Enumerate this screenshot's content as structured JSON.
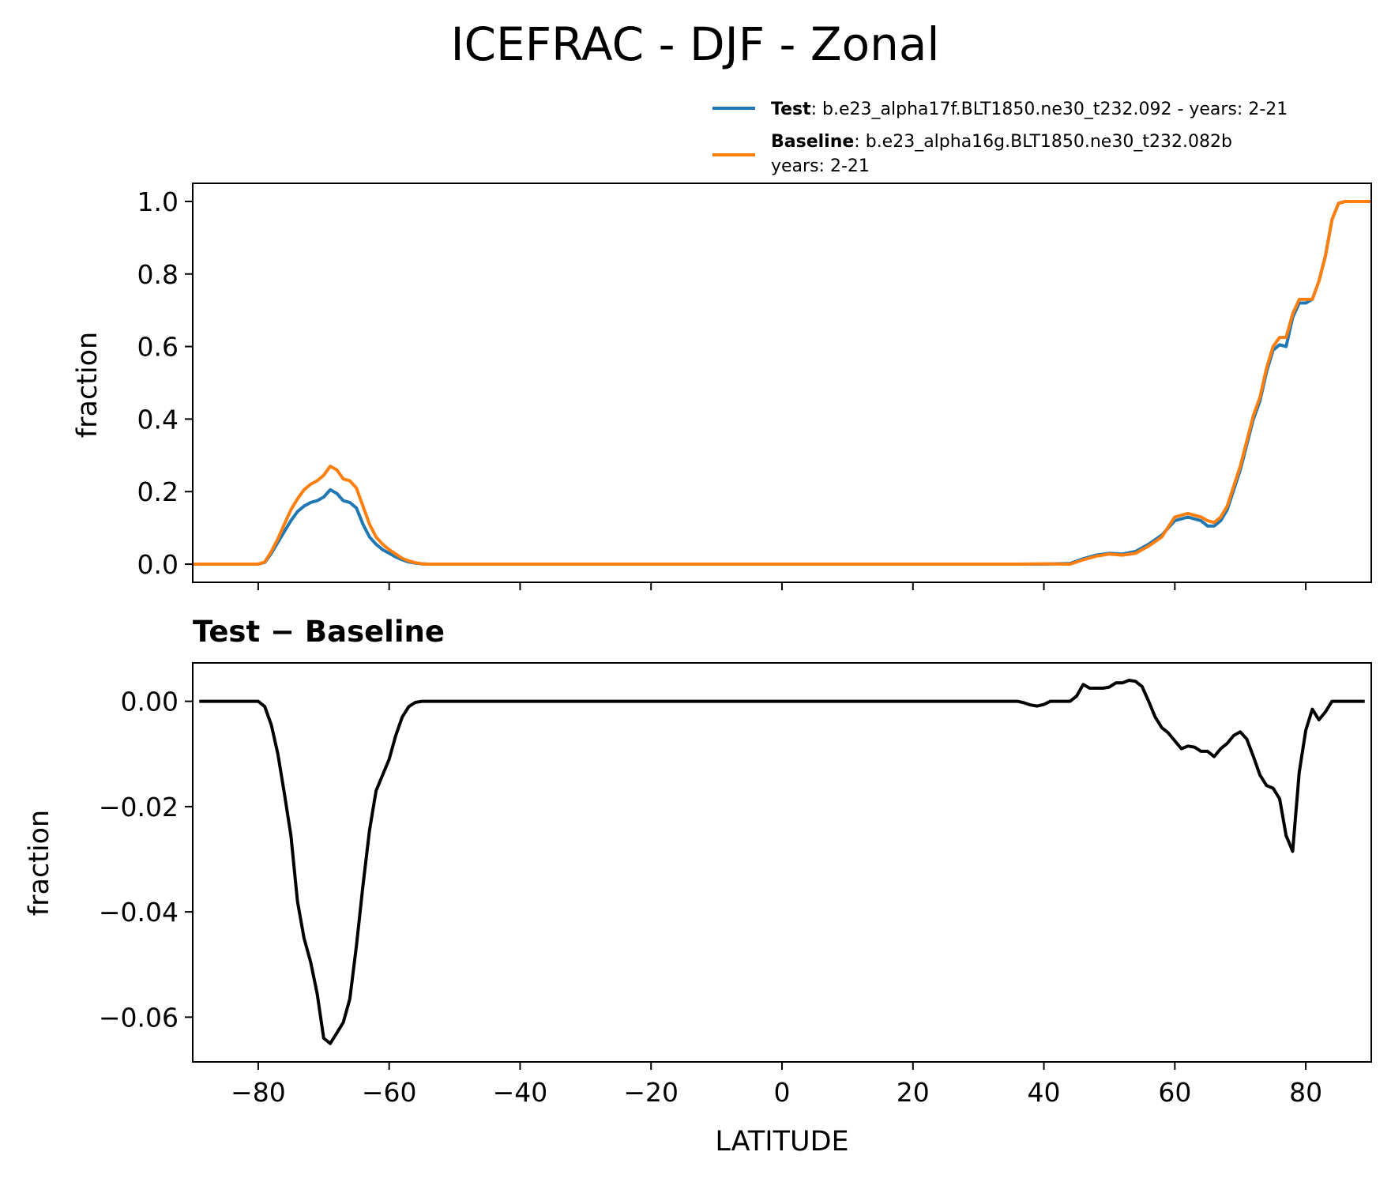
{
  "chart_data": [
    {
      "type": "line",
      "panel": "top",
      "title": "ICEFRAC - DJF - Zonal",
      "xlabel": "",
      "ylabel": "fraction",
      "xlim": [
        -90,
        90
      ],
      "ylim": [
        -0.05,
        1.05
      ],
      "yticks": [
        "0.0",
        "0.2",
        "0.4",
        "0.6",
        "0.8",
        "1.0"
      ],
      "ytick_values": [
        0.0,
        0.2,
        0.4,
        0.6,
        0.8,
        1.0
      ],
      "xtick_values": [
        -80,
        -60,
        -40,
        -20,
        0,
        20,
        40,
        60,
        80
      ],
      "legend": {
        "placement": "top-right",
        "entries": [
          {
            "bold": "Test",
            "text": ": b.e23_alpha17f.BLT1850.ne30_t232.092 - years: 2-21",
            "text2": "",
            "color": "#1f77b4"
          },
          {
            "bold": "Baseline",
            "text": ": b.e23_alpha16g.BLT1850.ne30_t232.082b",
            "text2": "years: 2-21",
            "color": "#ff7f0e"
          }
        ]
      },
      "series": [
        {
          "name": "Test",
          "color": "#1f77b4",
          "x": [
            -90,
            -80,
            -79,
            -78,
            -77,
            -76,
            -75,
            -74,
            -73,
            -72,
            -71,
            -70,
            -69,
            -68,
            -67,
            -66,
            -65,
            -64,
            -63,
            -62,
            -61,
            -60,
            -59,
            -58,
            -57,
            -56,
            -55,
            -54,
            -50,
            0,
            36,
            40,
            44,
            46,
            48,
            50,
            52,
            54,
            56,
            58,
            60,
            62,
            64,
            65,
            66,
            67,
            68,
            70,
            71,
            72,
            73,
            74,
            75,
            76,
            77,
            78,
            79,
            80,
            81,
            82,
            83,
            84,
            85,
            86,
            87,
            88,
            89,
            90
          ],
          "y": [
            0,
            0,
            0.005,
            0.03,
            0.06,
            0.09,
            0.12,
            0.145,
            0.16,
            0.17,
            0.175,
            0.185,
            0.205,
            0.195,
            0.175,
            0.17,
            0.155,
            0.11,
            0.075,
            0.055,
            0.04,
            0.03,
            0.02,
            0.012,
            0.006,
            0.003,
            0.001,
            0,
            0,
            0,
            0,
            0,
            0.002,
            0.015,
            0.025,
            0.03,
            0.028,
            0.035,
            0.055,
            0.08,
            0.12,
            0.13,
            0.12,
            0.105,
            0.105,
            0.12,
            0.15,
            0.26,
            0.33,
            0.4,
            0.45,
            0.53,
            0.59,
            0.605,
            0.6,
            0.68,
            0.72,
            0.72,
            0.73,
            0.78,
            0.85,
            0.95,
            0.995,
            1.0,
            1.0,
            1.0,
            1.0,
            1.0
          ]
        },
        {
          "name": "Baseline",
          "color": "#ff7f0e",
          "x": [
            -90,
            -80,
            -79,
            -78,
            -77,
            -76,
            -75,
            -74,
            -73,
            -72,
            -71,
            -70,
            -69,
            -68,
            -67,
            -66,
            -65,
            -64,
            -63,
            -62,
            -61,
            -60,
            -59,
            -58,
            -57,
            -56,
            -55,
            -54,
            -50,
            0,
            36,
            40,
            44,
            46,
            48,
            50,
            52,
            54,
            56,
            58,
            60,
            62,
            64,
            65,
            66,
            67,
            68,
            70,
            71,
            72,
            73,
            74,
            75,
            76,
            77,
            78,
            79,
            80,
            81,
            82,
            83,
            84,
            85,
            86,
            87,
            88,
            89,
            90
          ],
          "y": [
            0,
            0,
            0.006,
            0.035,
            0.07,
            0.11,
            0.15,
            0.18,
            0.205,
            0.22,
            0.23,
            0.245,
            0.27,
            0.26,
            0.235,
            0.23,
            0.21,
            0.16,
            0.11,
            0.075,
            0.055,
            0.04,
            0.028,
            0.016,
            0.009,
            0.004,
            0.001,
            0,
            0,
            0,
            0,
            0.001,
            0,
            0.012,
            0.022,
            0.028,
            0.025,
            0.03,
            0.05,
            0.075,
            0.13,
            0.14,
            0.13,
            0.12,
            0.115,
            0.13,
            0.16,
            0.27,
            0.34,
            0.41,
            0.46,
            0.54,
            0.6,
            0.625,
            0.625,
            0.69,
            0.73,
            0.73,
            0.73,
            0.78,
            0.85,
            0.95,
            0.995,
            1.0,
            1.0,
            1.0,
            1.0,
            1.0
          ]
        }
      ]
    },
    {
      "type": "line",
      "panel": "bottom",
      "title": "Test − Baseline",
      "xlabel": "LATITUDE",
      "ylabel": "fraction",
      "xlim": [
        -90,
        90
      ],
      "ylim": [
        -0.0685,
        0.0073
      ],
      "yticks": [
        "0.00",
        "−0.02",
        "−0.04",
        "−0.06"
      ],
      "ytick_values": [
        0.0,
        -0.02,
        -0.04,
        -0.06
      ],
      "xticks": [
        "−80",
        "−60",
        "−40",
        "−20",
        "0",
        "20",
        "40",
        "60",
        "80"
      ],
      "xtick_values": [
        -80,
        -60,
        -40,
        -20,
        0,
        20,
        40,
        60,
        80
      ],
      "series": [
        {
          "name": "",
          "color": "#000000",
          "x": [
            -89,
            -80,
            -79,
            -78,
            -77,
            -76,
            -75,
            -74,
            -73,
            -72,
            -71,
            -70,
            -69,
            -68,
            -67,
            -66,
            -65,
            -64,
            -63,
            -62,
            -61,
            -60,
            -59,
            -58,
            -57,
            -56,
            -55,
            -54,
            -52,
            0,
            36,
            37,
            38,
            39,
            40,
            41,
            42,
            43,
            44,
            45,
            46,
            47,
            48,
            49,
            50,
            51,
            52,
            53,
            54,
            55,
            56,
            57,
            58,
            59,
            60,
            61,
            62,
            63,
            64,
            65,
            66,
            67,
            68,
            69,
            70,
            71,
            72,
            73,
            74,
            75,
            76,
            77,
            78,
            79,
            80,
            81,
            82,
            83,
            84,
            85,
            86,
            87,
            88,
            89
          ],
          "y": [
            0,
            0,
            -0.001,
            -0.0045,
            -0.01,
            -0.0175,
            -0.0255,
            -0.038,
            -0.045,
            -0.0495,
            -0.0555,
            -0.064,
            -0.065,
            -0.063,
            -0.061,
            -0.0565,
            -0.0465,
            -0.035,
            -0.0245,
            -0.017,
            -0.014,
            -0.011,
            -0.0065,
            -0.003,
            -0.001,
            -0.0002,
            0,
            0,
            0,
            0,
            0,
            -0.0003,
            -0.0007,
            -0.0009,
            -0.0006,
            0,
            0,
            0,
            0,
            0.001,
            0.0032,
            0.0025,
            0.0025,
            0.0025,
            0.0027,
            0.0035,
            0.0035,
            0.004,
            0.0038,
            0.0028,
            0,
            -0.003,
            -0.005,
            -0.006,
            -0.0075,
            -0.009,
            -0.0085,
            -0.0087,
            -0.0095,
            -0.0095,
            -0.0105,
            -0.009,
            -0.008,
            -0.0065,
            -0.0058,
            -0.0072,
            -0.0105,
            -0.014,
            -0.016,
            -0.0165,
            -0.0185,
            -0.0255,
            -0.0285,
            -0.0135,
            -0.0055,
            -0.0015,
            -0.0035,
            -0.002,
            0,
            0,
            0,
            0,
            0,
            0
          ]
        }
      ]
    }
  ]
}
